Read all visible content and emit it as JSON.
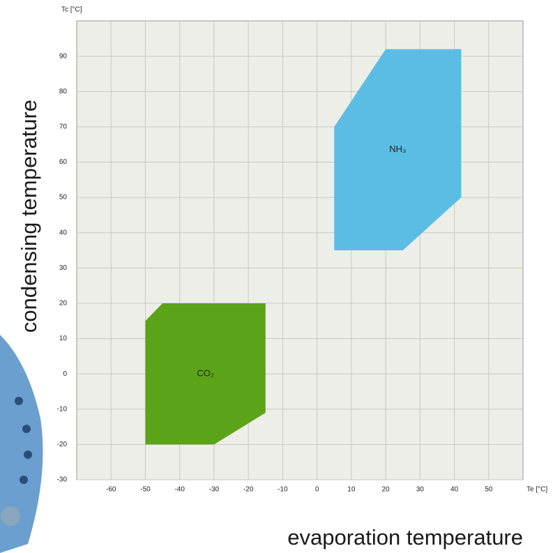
{
  "chart_data": {
    "type": "polygon",
    "x_label": "Te [°C]",
    "y_label": "Tc [°C]",
    "x_title": "evaporation temperature",
    "y_title": "condensing temperature",
    "xlim": [
      -70,
      60
    ],
    "xticks": [
      -60,
      -50,
      -40,
      -30,
      -20,
      -10,
      0,
      10,
      20,
      30,
      40,
      50
    ],
    "ylim": [
      -30,
      100
    ],
    "yticks": [
      -30,
      -20,
      -10,
      0,
      10,
      20,
      30,
      40,
      50,
      60,
      70,
      80,
      90
    ],
    "grid": true,
    "series": [
      {
        "name": "CO₂",
        "color": "#5ba419",
        "x": [
          -50,
          -45,
          -15,
          -15,
          -30,
          -50
        ],
        "y": [
          15,
          20,
          20,
          -11,
          -20,
          -20
        ]
      },
      {
        "name": "NH₃",
        "color": "#5bbde4",
        "x": [
          5,
          20,
          42,
          42,
          25,
          5
        ],
        "y": [
          70,
          92,
          92,
          50,
          35,
          35
        ]
      }
    ]
  }
}
